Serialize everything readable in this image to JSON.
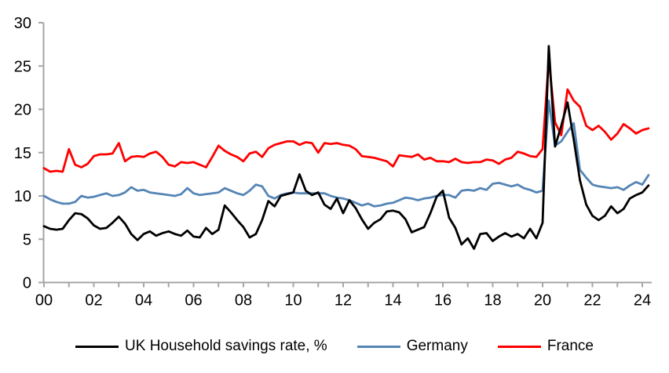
{
  "chart_data": {
    "type": "line",
    "title": "",
    "xlabel": "",
    "ylabel": "",
    "frequency": "quarterly",
    "x_start": "2000Q1",
    "x_end": "2024Q2",
    "ylim": [
      0,
      30
    ],
    "y_ticks": [
      0,
      5,
      10,
      15,
      20,
      25,
      30
    ],
    "x_tick_labels": [
      "00",
      "02",
      "04",
      "06",
      "08",
      "10",
      "12",
      "14",
      "16",
      "18",
      "20",
      "22",
      "24"
    ],
    "grid": false,
    "legend_position": "bottom",
    "axis_color": "#a6a6a6",
    "series": [
      {
        "name": "Germany",
        "color": "#5585b5",
        "values": [
          10.0,
          9.6,
          9.3,
          9.1,
          9.1,
          9.3,
          10.0,
          9.8,
          9.9,
          10.1,
          10.3,
          10.0,
          10.1,
          10.4,
          11.0,
          10.6,
          10.7,
          10.4,
          10.3,
          10.2,
          10.1,
          10.0,
          10.2,
          10.9,
          10.3,
          10.1,
          10.2,
          10.3,
          10.4,
          10.9,
          10.6,
          10.3,
          10.1,
          10.6,
          11.3,
          11.1,
          10.0,
          9.7,
          10.1,
          10.3,
          10.4,
          10.3,
          10.3,
          10.3,
          10.3,
          10.3,
          10.0,
          9.8,
          9.7,
          9.5,
          9.2,
          8.9,
          9.1,
          8.8,
          8.9,
          9.1,
          9.2,
          9.5,
          9.8,
          9.7,
          9.5,
          9.7,
          9.8,
          10.0,
          10.1,
          10.1,
          9.8,
          10.6,
          10.7,
          10.6,
          10.9,
          10.7,
          11.4,
          11.5,
          11.3,
          11.1,
          11.3,
          10.9,
          10.7,
          10.4,
          10.6,
          21.0,
          15.8,
          16.3,
          17.4,
          18.4,
          13.0,
          12.1,
          11.3,
          11.1,
          11.0,
          10.9,
          11.0,
          10.7,
          11.2,
          11.6,
          11.3,
          12.4
        ]
      },
      {
        "name": "France",
        "color": "#fe0000",
        "values": [
          13.2,
          12.8,
          12.9,
          12.8,
          15.4,
          13.6,
          13.3,
          13.7,
          14.6,
          14.8,
          14.8,
          14.9,
          16.1,
          14.0,
          14.5,
          14.6,
          14.5,
          14.9,
          15.1,
          14.5,
          13.6,
          13.4,
          13.9,
          13.8,
          13.9,
          13.6,
          13.3,
          14.5,
          15.8,
          15.2,
          14.8,
          14.5,
          14.0,
          14.9,
          15.1,
          14.5,
          15.5,
          15.9,
          16.1,
          16.3,
          16.3,
          15.9,
          16.2,
          16.1,
          15.0,
          16.1,
          16.0,
          16.1,
          15.9,
          15.8,
          15.4,
          14.6,
          14.5,
          14.4,
          14.2,
          14.0,
          13.4,
          14.7,
          14.6,
          14.5,
          14.8,
          14.2,
          14.4,
          14.0,
          14.0,
          13.9,
          14.3,
          13.9,
          13.8,
          13.9,
          13.9,
          14.2,
          14.1,
          13.7,
          14.2,
          14.4,
          15.1,
          14.9,
          14.6,
          14.5,
          15.4,
          25.8,
          18.5,
          17.0,
          22.3,
          21.0,
          20.3,
          18.1,
          17.6,
          18.1,
          17.4,
          16.5,
          17.2,
          18.3,
          17.8,
          17.2,
          17.6,
          17.8
        ]
      },
      {
        "name": "UK Household savings rate, %",
        "color": "#000000",
        "values": [
          6.5,
          6.2,
          6.1,
          6.2,
          7.2,
          8.0,
          7.9,
          7.4,
          6.6,
          6.2,
          6.3,
          6.9,
          7.6,
          6.8,
          5.6,
          4.9,
          5.6,
          5.9,
          5.4,
          5.7,
          5.9,
          5.6,
          5.4,
          6.0,
          5.3,
          5.2,
          6.3,
          5.6,
          6.1,
          8.9,
          8.1,
          7.2,
          6.4,
          5.2,
          5.6,
          7.2,
          9.4,
          8.8,
          10.0,
          10.2,
          10.4,
          12.5,
          10.6,
          10.1,
          10.4,
          9.0,
          8.5,
          9.7,
          8.0,
          9.5,
          8.6,
          7.3,
          6.2,
          6.9,
          7.3,
          8.2,
          8.3,
          8.1,
          7.3,
          5.8,
          6.1,
          6.4,
          8.0,
          9.9,
          10.6,
          7.5,
          6.3,
          4.4,
          5.1,
          3.9,
          5.6,
          5.7,
          4.8,
          5.3,
          5.7,
          5.3,
          5.6,
          5.1,
          6.2,
          5.1,
          6.9,
          27.3,
          15.7,
          18.1,
          20.8,
          16.5,
          11.8,
          9.0,
          7.7,
          7.2,
          7.7,
          8.8,
          8.0,
          8.5,
          9.7,
          10.1,
          10.4,
          11.2
        ]
      }
    ]
  },
  "legend": {
    "items": [
      {
        "label": "UK Household savings rate, %",
        "color": "#000000"
      },
      {
        "label": "Germany",
        "color": "#5585b5"
      },
      {
        "label": "France",
        "color": "#fe0000"
      }
    ]
  }
}
